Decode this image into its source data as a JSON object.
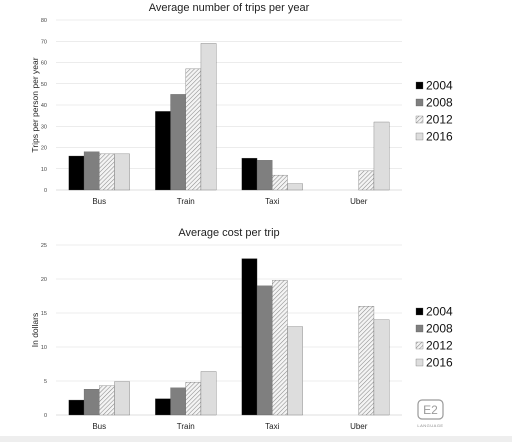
{
  "colors": {
    "2004": "#000000",
    "2008": "#7f7f7f",
    "2012": "hatch",
    "2016": "#dddddd",
    "grid": "#d9d9d9",
    "axis": "#bfbfbf"
  },
  "logo": {
    "mark": "E2",
    "text": "LANGUAGE"
  },
  "chart_data": [
    {
      "type": "bar",
      "title": "Average number of trips per year",
      "ylabel": "Trips per person per year",
      "xlabel": "",
      "categories": [
        "Bus",
        "Train",
        "Taxi",
        "Uber"
      ],
      "ylim": [
        0,
        80
      ],
      "yticks": [
        0,
        10,
        20,
        30,
        40,
        50,
        60,
        70,
        80
      ],
      "grid": true,
      "legend": "right",
      "series": [
        {
          "name": "2004",
          "values": [
            16,
            37,
            15,
            0
          ]
        },
        {
          "name": "2008",
          "values": [
            18,
            45,
            14,
            0
          ]
        },
        {
          "name": "2012",
          "values": [
            17,
            57,
            7,
            9
          ]
        },
        {
          "name": "2016",
          "values": [
            17,
            69,
            3,
            32
          ]
        }
      ]
    },
    {
      "type": "bar",
      "title": "Average cost per trip",
      "ylabel": "In dollars",
      "xlabel": "",
      "categories": [
        "Bus",
        "Train",
        "Taxi",
        "Uber"
      ],
      "ylim": [
        0,
        25
      ],
      "yticks": [
        0,
        5,
        10,
        15,
        20,
        25
      ],
      "grid": true,
      "legend": "right",
      "series": [
        {
          "name": "2004",
          "values": [
            2.2,
            2.4,
            23,
            0
          ]
        },
        {
          "name": "2008",
          "values": [
            3.8,
            4,
            19,
            0
          ]
        },
        {
          "name": "2012",
          "values": [
            4.3,
            4.8,
            19.8,
            16
          ]
        },
        {
          "name": "2016",
          "values": [
            4.9,
            6.4,
            13,
            14
          ]
        }
      ]
    }
  ]
}
